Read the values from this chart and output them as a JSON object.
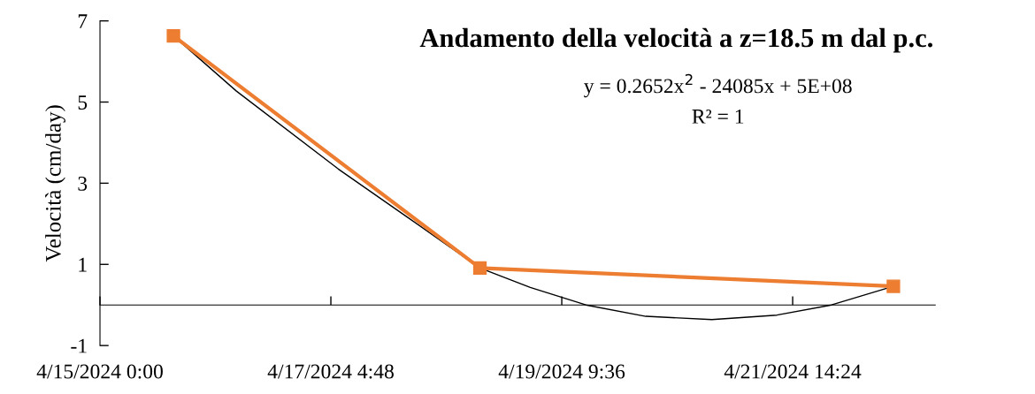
{
  "chart_data": {
    "type": "line",
    "title": "Andamento della velocità a z=18.5 m dal p.c.",
    "ylabel": "Velocità (cm/day)",
    "annotations": [
      "y = 0.2652x$^{2}$ - 24085x + 5E+08",
      "R² = 1"
    ],
    "x": [
      "2024-04-15T16:48",
      "2024-04-18T14:53",
      "2024-04-22T13:26"
    ],
    "series": [
      {
        "color": "#ed7d31",
        "marker": "square",
        "values": [
          6.63,
          0.91,
          0.46
        ]
      },
      {
        "type": "line",
        "color": "#000000",
        "marker": "none",
        "x": [
          "2024-04-15T16:48",
          "2024-04-16T07:12",
          "2024-04-17T06:30",
          "2024-04-17T22:05",
          "2024-04-18T14:53",
          "2024-04-19T02:24",
          "2024-04-19T15:07",
          "2024-04-20T04:48",
          "2024-04-20T19:55",
          "2024-04-21T10:48",
          "2024-04-21T23:17",
          "2024-04-22T13:26"
        ],
        "values": [
          6.63,
          5.27,
          3.35,
          2.18,
          0.91,
          0.43,
          0,
          -0.28,
          -0.36,
          -0.25,
          0,
          0.46
        ]
      }
    ],
    "xlim": [
      "2024-04-15T00:00",
      "2024-04-22T23:00"
    ],
    "xticks": [
      {
        "value": "2024-04-15T00:00",
        "label": "4/15/2024 0:00"
      },
      {
        "value": "2024-04-17T04:48",
        "label": "4/17/2024 4:48"
      },
      {
        "value": "2024-04-19T09:36",
        "label": "4/19/2024 9:36"
      },
      {
        "value": "2024-04-21T14:24",
        "label": "4/21/2024 14:24"
      }
    ],
    "ylim": [
      -1,
      7
    ],
    "yticks": [
      7,
      5,
      3,
      1,
      -1
    ]
  }
}
